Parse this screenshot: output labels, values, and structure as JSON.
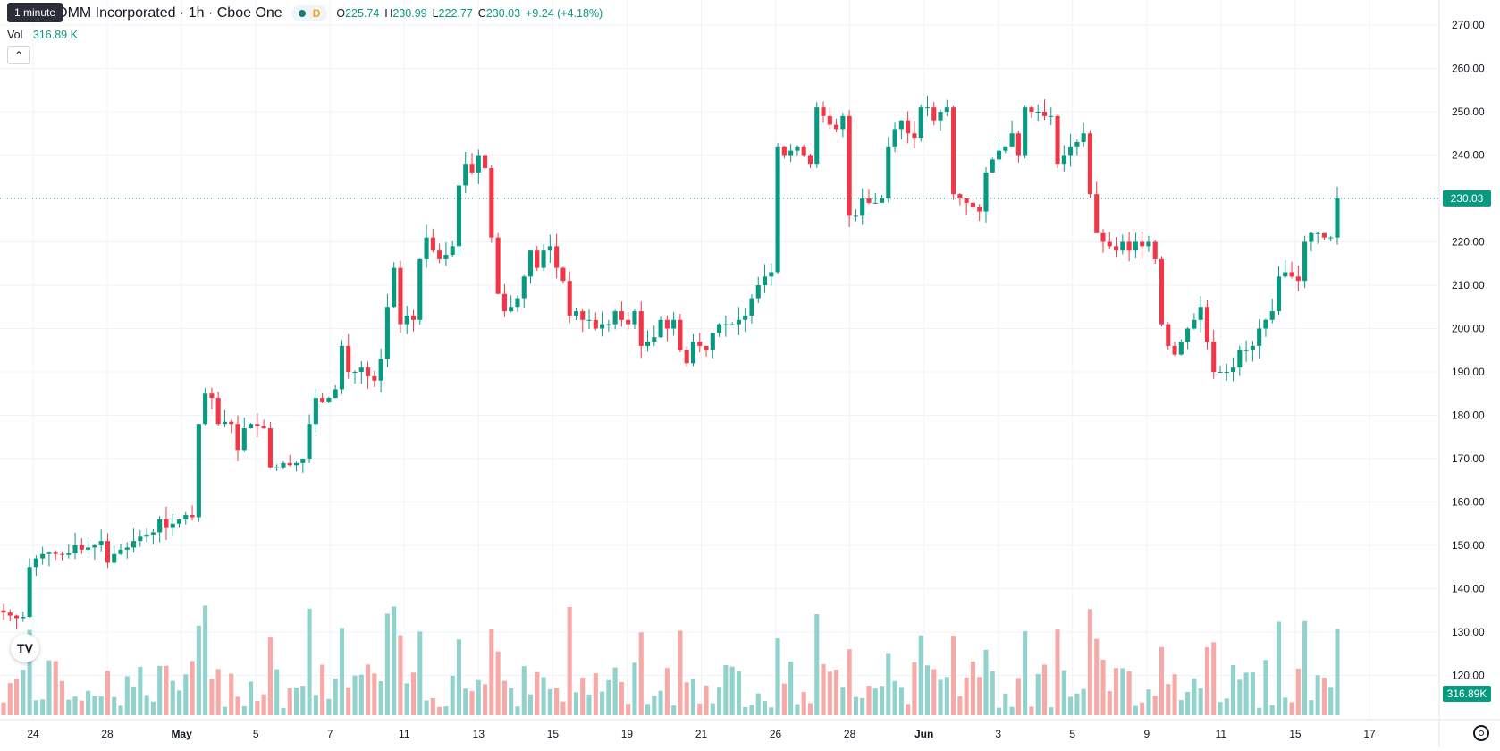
{
  "header": {
    "symbol_title": "QUALCOMM Incorporated · 1h · Cboe One",
    "tooltip": "1 minute",
    "interval_badge": "D",
    "ohlc": {
      "o_label": "O",
      "o": "225.74",
      "h_label": "H",
      "h": "230.99",
      "l_label": "L",
      "l": "222.77",
      "c_label": "C",
      "c": "230.03",
      "change": "+9.24 (+4.18%)"
    },
    "volume_label": "Vol",
    "volume_value": "316.89 K"
  },
  "price_axis": {
    "ticks": [
      "270.00",
      "260.00",
      "250.00",
      "240.00",
      "230.00",
      "220.00",
      "210.00",
      "200.00",
      "190.00",
      "180.00",
      "170.00",
      "160.00",
      "150.00",
      "140.00",
      "130.00",
      "120.00"
    ],
    "last_price_label": "230.03",
    "last_volume_label": "316.89K"
  },
  "time_axis": {
    "labels": [
      "24",
      "28",
      "May",
      "5",
      "7",
      "11",
      "13",
      "15",
      "19",
      "21",
      "26",
      "28",
      "Jun",
      "3",
      "5",
      "9",
      "11",
      "15",
      "17"
    ]
  },
  "colors": {
    "up": "#089981",
    "down": "#f23645",
    "up_volume": "#92d2cc",
    "down_volume": "#f7a9a7",
    "grid": "#f0f3fa"
  },
  "chart_data": {
    "type": "candlestick",
    "symbol": "QUALCOMM Incorporated",
    "interval": "1h",
    "y_range": [
      120,
      270
    ],
    "last_close": 230.03,
    "closes_approx": [
      134.5,
      133.8,
      133.2,
      133.5,
      145,
      147,
      148,
      148.5,
      148,
      147.8,
      148.2,
      150,
      149,
      149.5,
      150,
      151,
      146,
      148,
      149,
      149.5,
      151,
      152,
      152.5,
      153,
      156,
      154,
      155,
      156,
      157,
      156.5,
      178,
      185,
      184,
      178,
      178.5,
      178,
      172,
      177,
      178,
      177.5,
      177,
      168,
      168,
      169,
      168.5,
      169,
      170,
      178,
      184,
      183,
      184,
      186,
      196,
      190,
      190,
      191,
      189,
      188,
      193,
      205,
      214,
      201,
      203,
      202,
      216,
      221,
      218,
      216,
      217,
      219,
      233,
      238,
      236,
      240,
      237,
      221,
      208,
      204,
      205,
      207,
      212,
      218,
      214,
      218,
      219,
      214,
      211,
      203,
      204,
      202,
      202,
      200,
      201,
      201,
      204,
      202,
      201,
      204,
      196,
      197,
      198,
      202,
      200,
      202,
      195,
      192,
      197,
      196,
      195,
      199,
      201,
      201,
      201,
      202,
      203,
      207,
      210,
      212,
      213,
      242,
      240,
      241,
      242,
      240,
      238,
      251,
      249,
      247,
      246,
      249,
      226,
      226,
      230,
      229,
      229,
      230,
      242,
      246,
      248,
      245,
      244,
      251,
      251,
      248,
      250,
      251,
      231,
      230,
      229,
      228,
      227,
      236,
      239,
      241,
      242,
      245,
      240,
      251,
      250,
      250,
      249,
      249,
      238,
      240,
      242,
      243,
      245,
      231,
      222,
      220,
      219,
      218,
      220,
      218,
      220,
      219,
      220,
      216,
      201,
      196,
      194,
      197,
      200,
      202,
      205,
      197,
      190,
      190,
      190,
      191,
      195,
      195,
      196,
      200,
      202,
      204,
      212,
      213,
      212,
      211,
      220,
      222,
      222,
      221,
      221,
      230
    ]
  }
}
